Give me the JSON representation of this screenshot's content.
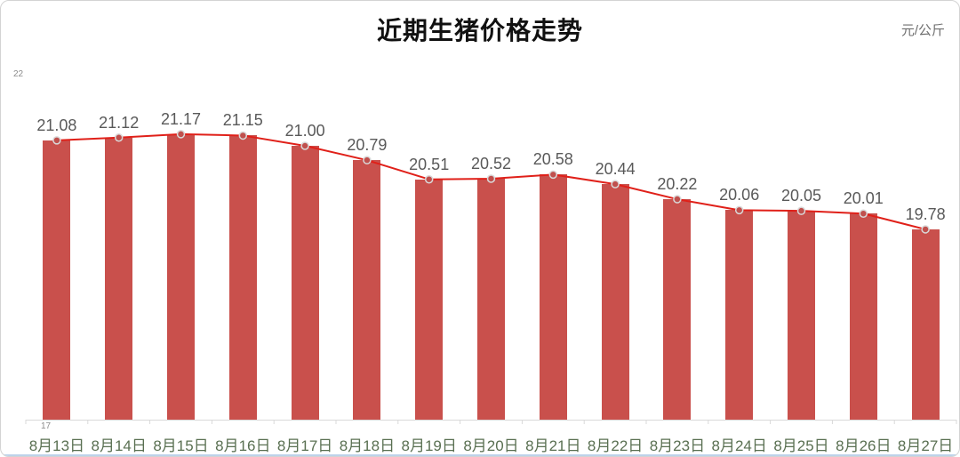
{
  "chart_data": {
    "type": "bar",
    "overlay": "line",
    "title": "近期生猪价格走势",
    "unit": "元/公斤",
    "categories": [
      "8月13日",
      "8月14日",
      "8月15日",
      "8月16日",
      "8月17日",
      "8月18日",
      "8月19日",
      "8月20日",
      "8月21日",
      "8月22日",
      "8月23日",
      "8月24日",
      "8月25日",
      "8月26日",
      "8月27日"
    ],
    "values": [
      21.08,
      21.12,
      21.17,
      21.15,
      21.0,
      20.79,
      20.51,
      20.52,
      20.58,
      20.44,
      20.22,
      20.06,
      20.05,
      20.01,
      19.78
    ],
    "data_labels": [
      "21.08",
      "21.12",
      "21.17",
      "21.15",
      "21.00",
      "20.79",
      "20.51",
      "20.52",
      "20.58",
      "20.44",
      "20.22",
      "20.06",
      "20.05",
      "20.01",
      "19.78"
    ],
    "ylim": [
      17,
      22
    ],
    "ytick_labels": [
      "22",
      "17"
    ],
    "grid": false,
    "legend": "none"
  },
  "colors": {
    "bar": "#c9504c",
    "line": "#e02019",
    "marker_fill": "#c0504d",
    "marker_stroke": "#d9d9d9",
    "value_label": "#595959",
    "date_label": "#5a7052",
    "axis": "#d9d9d9",
    "bottom_accent": "#bdd3ea"
  }
}
